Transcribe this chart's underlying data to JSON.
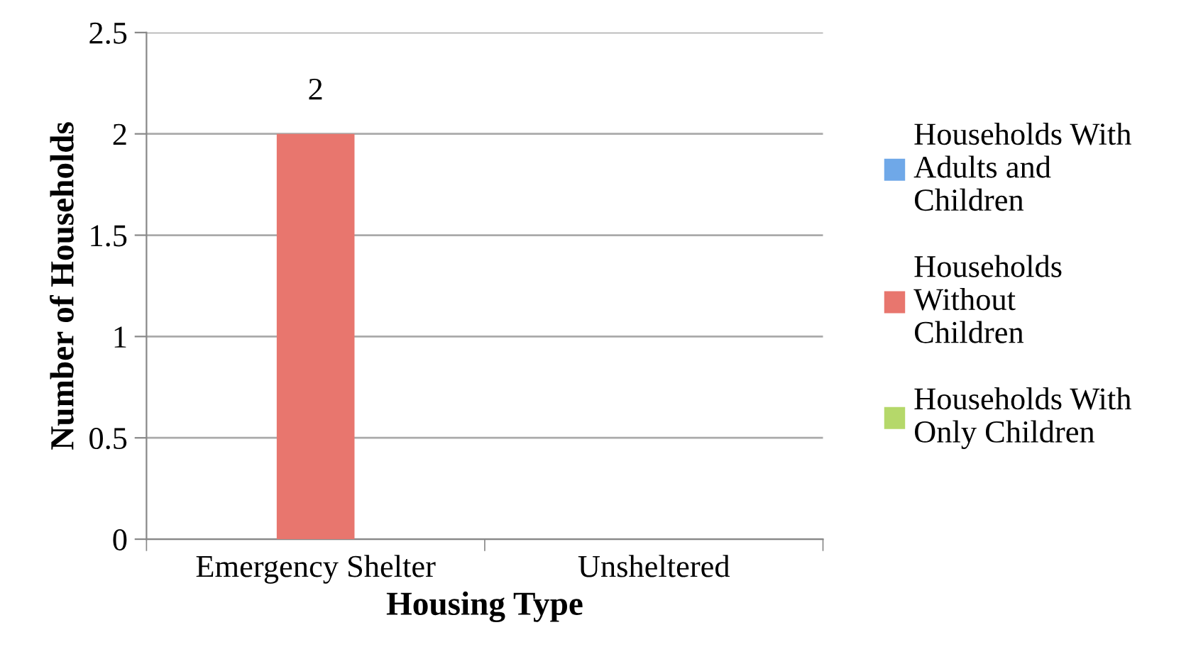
{
  "chart_data": {
    "type": "bar",
    "xlabel": "Housing Type",
    "ylabel": "Number of Households",
    "categories": [
      "Emergency Shelter",
      "Unsheltered"
    ],
    "series": [
      {
        "name": "Households With Adults and Children",
        "color": "#6fa8e8",
        "values": [
          0,
          0
        ],
        "value_labels": [
          null,
          null
        ]
      },
      {
        "name": "Households Without Children",
        "color": "#e8766e",
        "values": [
          2,
          0
        ],
        "value_labels": [
          "2",
          null
        ]
      },
      {
        "name": "Households With Only Children",
        "color": "#b5d86a",
        "values": [
          0,
          0
        ],
        "value_labels": [
          null,
          null
        ]
      }
    ],
    "ylim": [
      0,
      2.5
    ],
    "yticks": [
      0,
      0.5,
      1,
      1.5,
      2,
      2.5
    ],
    "grid": "y",
    "legend": "right"
  }
}
